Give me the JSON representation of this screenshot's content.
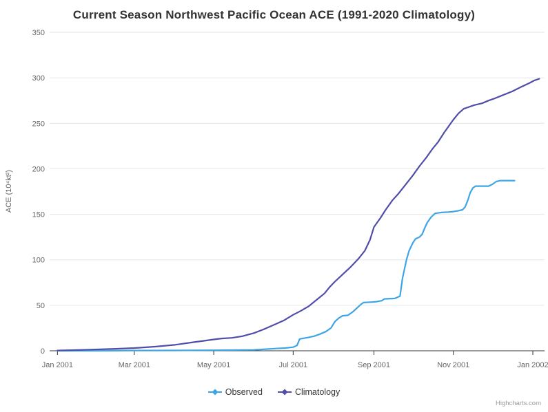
{
  "title": "Current Season Northwest Pacific Ocean ACE (1991-2020 Climatology)",
  "credit": "Highcharts.com",
  "chart_data": {
    "type": "line",
    "title": "Current Season Northwest Pacific Ocean ACE (1991-2020 Climatology)",
    "xlabel": "",
    "ylabel": "ACE (10⁴kt²)",
    "x_unit": "day of season (Jan 2001 = 0)",
    "xlim": [
      -6,
      374
    ],
    "ylim": [
      0,
      350
    ],
    "grid": "horizontal",
    "legend_position": "bottom-center",
    "yticks": [
      0,
      50,
      100,
      150,
      200,
      250,
      300,
      350
    ],
    "xticks": [
      {
        "day": 0,
        "label": "Jan 2001"
      },
      {
        "day": 59,
        "label": "Mar 2001"
      },
      {
        "day": 120,
        "label": "May 2001"
      },
      {
        "day": 181,
        "label": "Jul 2001"
      },
      {
        "day": 243,
        "label": "Sep 2001"
      },
      {
        "day": 304,
        "label": "Nov 2001"
      },
      {
        "day": 365,
        "label": "Jan 2002"
      }
    ],
    "series": [
      {
        "name": "Observed",
        "color": "#3CA5E6",
        "marker": "diamond",
        "points": [
          [
            0,
            0
          ],
          [
            31,
            0
          ],
          [
            59,
            0.3
          ],
          [
            90,
            0.4
          ],
          [
            120,
            0.6
          ],
          [
            151,
            1
          ],
          [
            160,
            1.8
          ],
          [
            168,
            2.5
          ],
          [
            175,
            3
          ],
          [
            181,
            4
          ],
          [
            184,
            6
          ],
          [
            186,
            13
          ],
          [
            192,
            14.5
          ],
          [
            197,
            16
          ],
          [
            201,
            18
          ],
          [
            206,
            21
          ],
          [
            210,
            25
          ],
          [
            213,
            32
          ],
          [
            216,
            36
          ],
          [
            219,
            38.5
          ],
          [
            223,
            39
          ],
          [
            227,
            43
          ],
          [
            230,
            47
          ],
          [
            233,
            51
          ],
          [
            235,
            53
          ],
          [
            241,
            53.5
          ],
          [
            245,
            54
          ],
          [
            249,
            55
          ],
          [
            251,
            57
          ],
          [
            259,
            57.5
          ],
          [
            263,
            60
          ],
          [
            265,
            80
          ],
          [
            268,
            100
          ],
          [
            270,
            110
          ],
          [
            273,
            119
          ],
          [
            275,
            123
          ],
          [
            278,
            125
          ],
          [
            280,
            128
          ],
          [
            282,
            135
          ],
          [
            284,
            141
          ],
          [
            287,
            147
          ],
          [
            290,
            151
          ],
          [
            295,
            152
          ],
          [
            300,
            152.5
          ],
          [
            304,
            153
          ],
          [
            308,
            154
          ],
          [
            311,
            155
          ],
          [
            313,
            158
          ],
          [
            315,
            165
          ],
          [
            317,
            174
          ],
          [
            319,
            179
          ],
          [
            321,
            181
          ],
          [
            331,
            181
          ],
          [
            334,
            183
          ],
          [
            337,
            186
          ],
          [
            340,
            187
          ],
          [
            351,
            187
          ]
        ]
      },
      {
        "name": "Climatology",
        "color": "#504DA9",
        "marker": "diamond",
        "points": [
          [
            0,
            0.3
          ],
          [
            15,
            0.8
          ],
          [
            31,
            1.5
          ],
          [
            45,
            2.2
          ],
          [
            59,
            3
          ],
          [
            75,
            4.5
          ],
          [
            90,
            6.5
          ],
          [
            105,
            9.5
          ],
          [
            113,
            11
          ],
          [
            120,
            12.5
          ],
          [
            126,
            13.5
          ],
          [
            134,
            14.2
          ],
          [
            142,
            16
          ],
          [
            151,
            19.5
          ],
          [
            159,
            24
          ],
          [
            167,
            29
          ],
          [
            174,
            33.5
          ],
          [
            181,
            39.5
          ],
          [
            187,
            44
          ],
          [
            193,
            49
          ],
          [
            199,
            56
          ],
          [
            205,
            63
          ],
          [
            209,
            70
          ],
          [
            213,
            76
          ],
          [
            219,
            84
          ],
          [
            225,
            92
          ],
          [
            231,
            101
          ],
          [
            236,
            110
          ],
          [
            240,
            122
          ],
          [
            243,
            136
          ],
          [
            248,
            146
          ],
          [
            252,
            155
          ],
          [
            257,
            165
          ],
          [
            262,
            173
          ],
          [
            267,
            182
          ],
          [
            273,
            193
          ],
          [
            278,
            203
          ],
          [
            283,
            212
          ],
          [
            288,
            222
          ],
          [
            292,
            229
          ],
          [
            297,
            240
          ],
          [
            301,
            248
          ],
          [
            304,
            254
          ],
          [
            308,
            261
          ],
          [
            312,
            266
          ],
          [
            316,
            268
          ],
          [
            320,
            270
          ],
          [
            326,
            272
          ],
          [
            331,
            275
          ],
          [
            335,
            277
          ],
          [
            342,
            281
          ],
          [
            349,
            285
          ],
          [
            356,
            290
          ],
          [
            362,
            294
          ],
          [
            366,
            297
          ],
          [
            370,
            299
          ]
        ]
      }
    ]
  }
}
